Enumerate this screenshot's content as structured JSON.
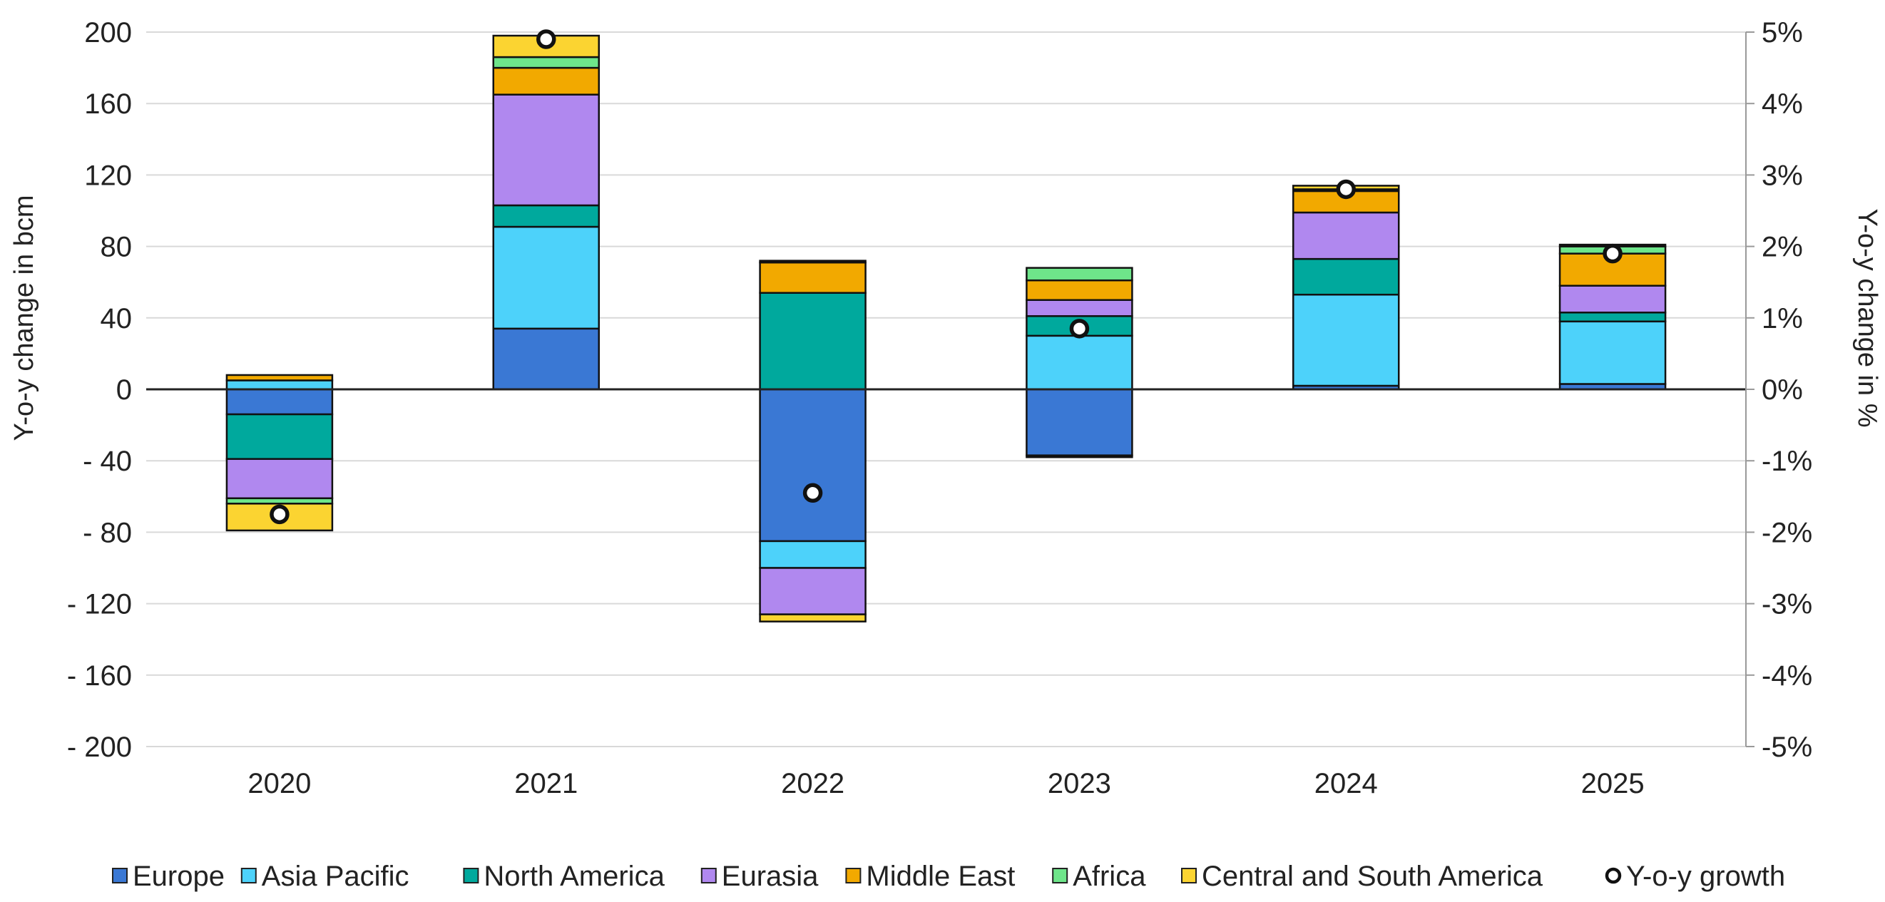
{
  "chart_data": {
    "type": "bar",
    "stacked": true,
    "categories": [
      "2020",
      "2021",
      "2022",
      "2023",
      "2024",
      "2025"
    ],
    "ylabel": "Y-o-y change in bcm",
    "y2label": "Y-o-y change in %",
    "ylim": [
      -200,
      200
    ],
    "y2lim": [
      -5,
      5
    ],
    "yticks": [
      "200",
      "160",
      "120",
      "80",
      "40",
      "0",
      "- 40",
      "- 80",
      "- 120",
      "- 160",
      "- 200"
    ],
    "y2ticks": [
      "5%",
      "4%",
      "3%",
      "2%",
      "1%",
      "0%",
      "-1%",
      "-2%",
      "-3%",
      "-4%",
      "-5%"
    ],
    "grid": true,
    "legend_position": "bottom",
    "series": [
      {
        "name": "Europe",
        "color": "#3a78d4",
        "values": [
          -14,
          34,
          -85,
          -37,
          2,
          3
        ]
      },
      {
        "name": "Asia Pacific",
        "color": "#4dd2fa",
        "values": [
          5,
          57,
          -15,
          30,
          51,
          35
        ]
      },
      {
        "name": "North America",
        "color": "#00a99d",
        "values": [
          -25,
          12,
          54,
          11,
          20,
          5
        ]
      },
      {
        "name": "Eurasia",
        "color": "#b088ef",
        "values": [
          -22,
          62,
          -26,
          9,
          26,
          15
        ]
      },
      {
        "name": "Middle East",
        "color": "#f2a900",
        "values": [
          3,
          15,
          17,
          11,
          12,
          18
        ]
      },
      {
        "name": "Africa",
        "color": "#6ee58a",
        "values": [
          -3,
          6,
          1,
          7,
          1,
          4
        ]
      },
      {
        "name": "Central and South America",
        "color": "#fbd431",
        "values": [
          -15,
          12,
          -4,
          -1,
          2,
          1
        ]
      }
    ],
    "line_series": {
      "name": "Y-o-y growth",
      "axis": "right",
      "values": [
        -1.75,
        4.9,
        -1.45,
        0.85,
        2.8,
        1.9
      ]
    }
  }
}
